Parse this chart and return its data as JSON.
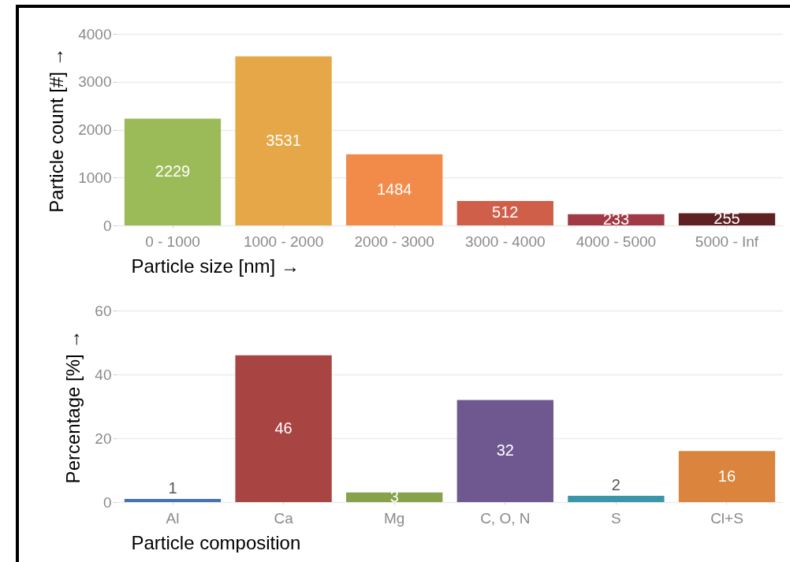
{
  "chart_data": [
    {
      "type": "bar",
      "categories": [
        "0 - 1000",
        "1000 - 2000",
        "2000 - 3000",
        "3000 - 4000",
        "4000 - 5000",
        "5000 - Inf"
      ],
      "values": [
        2229,
        3531,
        1484,
        512,
        233,
        255
      ],
      "colors": [
        "#9bbb59",
        "#e6a748",
        "#f28b4a",
        "#d05f4a",
        "#a23a45",
        "#5e2222"
      ],
      "xlabel": "Particle size [nm] →",
      "ylabel": "Particle count [#] →",
      "ylim": [
        0,
        4000
      ],
      "yticks": [
        0,
        1000,
        2000,
        3000,
        4000
      ],
      "grid": "y",
      "data_labels": true
    },
    {
      "type": "bar",
      "categories": [
        "Al",
        "Ca",
        "Mg",
        "C, O, N",
        "S",
        "Cl+S"
      ],
      "values": [
        1,
        46,
        3,
        32,
        2,
        16
      ],
      "colors": [
        "#4473b2",
        "#a84543",
        "#86a24a",
        "#6f578f",
        "#3a96ab",
        "#da843d"
      ],
      "xlabel": "Particle composition",
      "ylabel": "Percentage [%] →",
      "ylim": [
        0,
        60
      ],
      "yticks": [
        0,
        20,
        40,
        60
      ],
      "grid": "y",
      "data_labels": true
    }
  ]
}
